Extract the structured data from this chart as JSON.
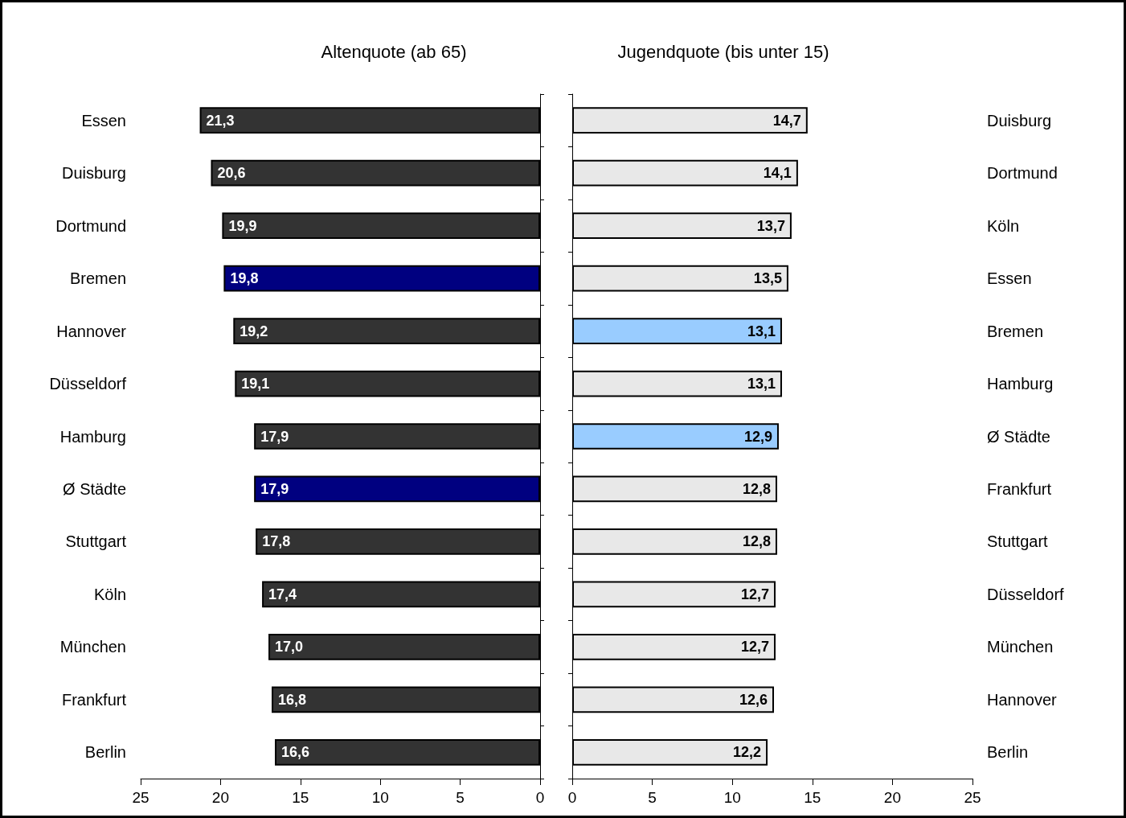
{
  "chart_data": [
    {
      "type": "bar",
      "orientation": "horizontal",
      "title": "Altenquote (ab 65)",
      "categories": [
        "Essen",
        "Duisburg",
        "Dortmund",
        "Bremen",
        "Hannover",
        "Düsseldorf",
        "Hamburg",
        "Ø Städte",
        "Stuttgart",
        "Köln",
        "München",
        "Frankfurt",
        "Berlin"
      ],
      "values": [
        21.3,
        20.6,
        19.9,
        19.8,
        19.2,
        19.1,
        17.9,
        17.9,
        17.8,
        17.4,
        17.0,
        16.8,
        16.6
      ],
      "colors": [
        "#333333",
        "#333333",
        "#333333",
        "#000080",
        "#333333",
        "#333333",
        "#333333",
        "#000080",
        "#333333",
        "#333333",
        "#333333",
        "#333333",
        "#333333"
      ],
      "value_labels": [
        "21,3",
        "20,6",
        "19,9",
        "19,8",
        "19,2",
        "19,1",
        "17,9",
        "17,9",
        "17,8",
        "17,4",
        "17,0",
        "16,8",
        "16,6"
      ],
      "xlim": [
        25,
        0
      ],
      "xticks": [
        25,
        20,
        15,
        10,
        5,
        0
      ],
      "grid": false
    },
    {
      "type": "bar",
      "orientation": "horizontal",
      "title": "Jugendquote (bis unter 15)",
      "categories": [
        "Duisburg",
        "Dortmund",
        "Köln",
        "Essen",
        "Bremen",
        "Hamburg",
        "Ø Städte",
        "Frankfurt",
        "Stuttgart",
        "Düsseldorf",
        "München",
        "Hannover",
        "Berlin"
      ],
      "values": [
        14.7,
        14.1,
        13.7,
        13.5,
        13.1,
        13.1,
        12.9,
        12.8,
        12.8,
        12.7,
        12.7,
        12.6,
        12.2
      ],
      "colors": [
        "#e8e8e8",
        "#e8e8e8",
        "#e8e8e8",
        "#e8e8e8",
        "#99ccff",
        "#e8e8e8",
        "#99ccff",
        "#e8e8e8",
        "#e8e8e8",
        "#e8e8e8",
        "#e8e8e8",
        "#e8e8e8",
        "#e8e8e8"
      ],
      "value_labels": [
        "14,7",
        "14,1",
        "13,7",
        "13,5",
        "13,1",
        "13,1",
        "12,9",
        "12,8",
        "12,8",
        "12,7",
        "12,7",
        "12,6",
        "12,2"
      ],
      "xlim": [
        0,
        25
      ],
      "xticks": [
        0,
        5,
        10,
        15,
        20,
        25
      ],
      "grid": false
    }
  ]
}
